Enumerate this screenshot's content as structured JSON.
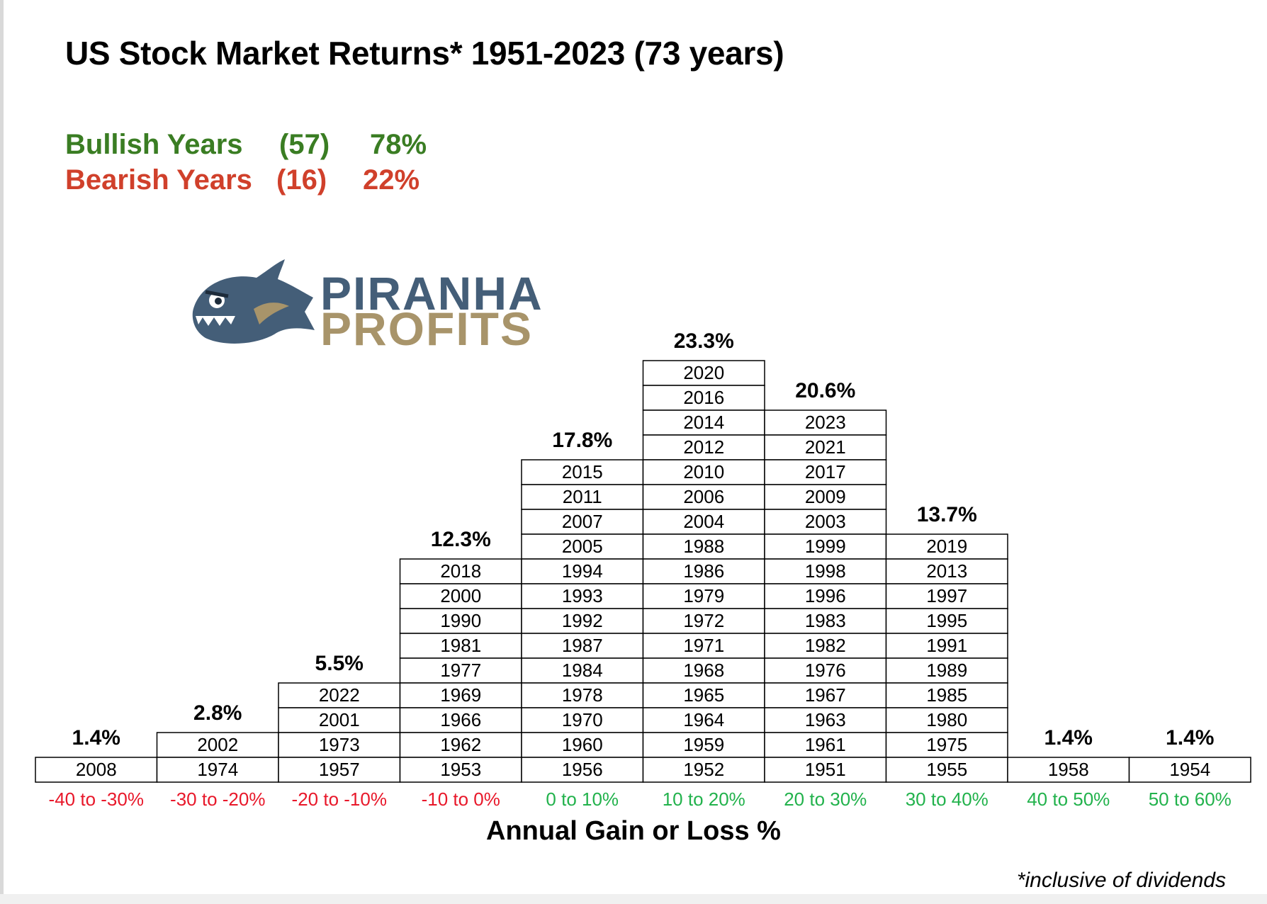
{
  "title": "US Stock Market Returns* 1951-2023 (73 years)",
  "summary": {
    "bullish": {
      "label": "Bullish Years",
      "count": "(57)",
      "pct": "78%",
      "color": "#3a7d23"
    },
    "bearish": {
      "label": "Bearish Years",
      "count": "(16)",
      "pct": "22%",
      "color": "#d0402b"
    }
  },
  "logo": {
    "line1": "PIRANHA",
    "line2": "PROFITS",
    "icon": "piranha-fish-icon"
  },
  "chart_data": {
    "type": "table",
    "xlabel": "Annual Gain or Loss %",
    "footnote": "*inclusive of dividends",
    "negative_color": "#e8182a",
    "positive_color": "#22b24c",
    "bins": [
      {
        "range": "-40 to -30%",
        "pct": "1.4%",
        "sign": "negative",
        "years": [
          "2008"
        ]
      },
      {
        "range": "-30 to -20%",
        "pct": "2.8%",
        "sign": "negative",
        "years": [
          "2002",
          "1974"
        ]
      },
      {
        "range": "-20 to -10%",
        "pct": "5.5%",
        "sign": "negative",
        "years": [
          "2022",
          "2001",
          "1973",
          "1957"
        ]
      },
      {
        "range": "-10 to 0%",
        "pct": "12.3%",
        "sign": "negative",
        "years": [
          "2018",
          "2000",
          "1990",
          "1981",
          "1977",
          "1969",
          "1966",
          "1962",
          "1953"
        ]
      },
      {
        "range": "0 to 10%",
        "pct": "17.8%",
        "sign": "positive",
        "years": [
          "2015",
          "2011",
          "2007",
          "2005",
          "1994",
          "1993",
          "1992",
          "1987",
          "1984",
          "1978",
          "1970",
          "1960",
          "1956"
        ]
      },
      {
        "range": "10 to 20%",
        "pct": "23.3%",
        "sign": "positive",
        "years": [
          "2020",
          "2016",
          "2014",
          "2012",
          "2010",
          "2006",
          "2004",
          "1988",
          "1986",
          "1979",
          "1972",
          "1971",
          "1968",
          "1965",
          "1964",
          "1959",
          "1952"
        ]
      },
      {
        "range": "20 to 30%",
        "pct": "20.6%",
        "sign": "positive",
        "years": [
          "2023",
          "2021",
          "2017",
          "2009",
          "2003",
          "1999",
          "1998",
          "1996",
          "1983",
          "1982",
          "1976",
          "1967",
          "1963",
          "1961",
          "1951"
        ]
      },
      {
        "range": "30 to 40%",
        "pct": "13.7%",
        "sign": "positive",
        "years": [
          "2019",
          "2013",
          "1997",
          "1995",
          "1991",
          "1989",
          "1985",
          "1980",
          "1975",
          "1955"
        ]
      },
      {
        "range": "40 to 50%",
        "pct": "1.4%",
        "sign": "positive",
        "years": [
          "1958"
        ]
      },
      {
        "range": "50 to 60%",
        "pct": "1.4%",
        "sign": "positive",
        "years": [
          "1954"
        ]
      }
    ]
  }
}
